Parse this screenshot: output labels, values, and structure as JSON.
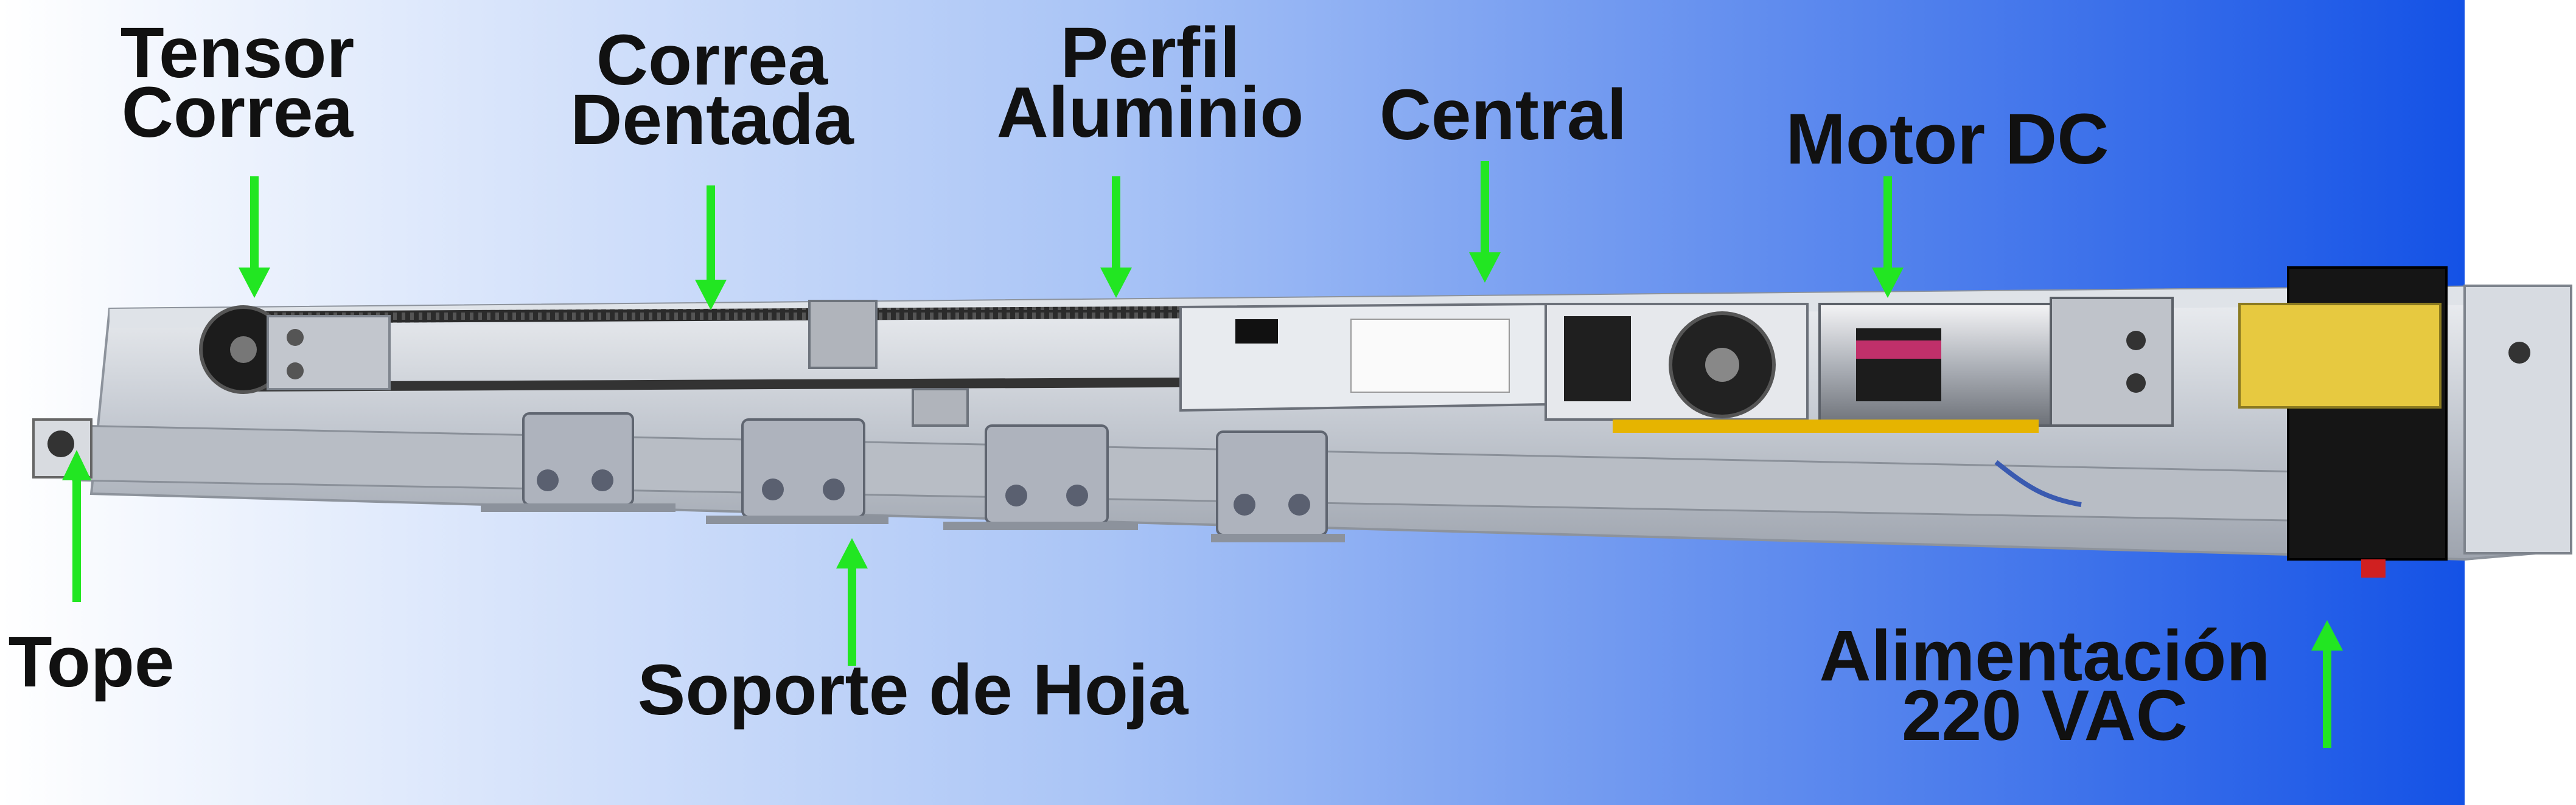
{
  "colors": {
    "background_left": "#ffffff",
    "background_right": "#1452e6",
    "arrow": "#22e622",
    "label_text": "#111111",
    "rail": "#c7ccd4",
    "belt": "#2a2a2a",
    "bracket": "#a9adb6"
  },
  "labels": {
    "tensor_correa": "Tensor\nCorrea",
    "correa_dentada": "Correa\nDentada",
    "perfil_aluminio": "Perfil\nAluminio",
    "central": "Central",
    "motor_dc": "Motor DC",
    "tope": "Tope",
    "soporte_de_hoja": "Soporte de Hoja",
    "alimentacion": "Alimentación\n220 VAC"
  },
  "arrows": [
    {
      "id": "tensor_correa",
      "direction": "down"
    },
    {
      "id": "correa_dentada",
      "direction": "down"
    },
    {
      "id": "perfil_aluminio",
      "direction": "down"
    },
    {
      "id": "central",
      "direction": "down"
    },
    {
      "id": "motor_dc",
      "direction": "down"
    },
    {
      "id": "tope",
      "direction": "up"
    },
    {
      "id": "soporte_de_hoja",
      "direction": "up"
    },
    {
      "id": "alimentacion",
      "direction": "up"
    }
  ]
}
